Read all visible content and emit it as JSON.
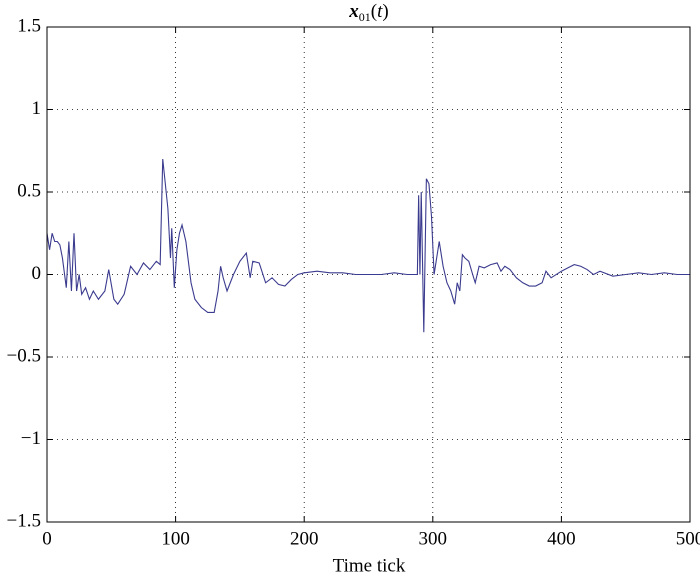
{
  "chart_data": {
    "type": "line",
    "title": {
      "base": "x",
      "subscript": "01",
      "open": "(",
      "arg": "t",
      "close": ")"
    },
    "xlabel": "Time tick",
    "xlim": [
      0,
      500
    ],
    "xticks": [
      0,
      100,
      200,
      300,
      400,
      500
    ],
    "ylim": [
      -1.5,
      1.5
    ],
    "yticks": [
      {
        "value": -1.5,
        "label": "−1.5"
      },
      {
        "value": -1,
        "label": "−1"
      },
      {
        "value": -0.5,
        "label": "−0.5"
      },
      0,
      0.5,
      1,
      1.5
    ],
    "grid": true,
    "series": [
      {
        "color": "#3b3b8f",
        "x": [
          0,
          2,
          4,
          6,
          8,
          10,
          12,
          15,
          17,
          19,
          21,
          23,
          25,
          27,
          30,
          33,
          36,
          40,
          45,
          48,
          52,
          55,
          60,
          65,
          70,
          75,
          80,
          85,
          88,
          90,
          92,
          94,
          96,
          97,
          99,
          101,
          103,
          105,
          108,
          112,
          115,
          120,
          125,
          130,
          133,
          135,
          137,
          140,
          145,
          150,
          155,
          158,
          160,
          165,
          170,
          175,
          180,
          185,
          190,
          195,
          200,
          210,
          220,
          230,
          240,
          250,
          260,
          270,
          280,
          288,
          289,
          290,
          291,
          293,
          295,
          297,
          299,
          301,
          303,
          305,
          308,
          311,
          314,
          317,
          319,
          321,
          323,
          325,
          328,
          331,
          333,
          336,
          340,
          345,
          350,
          353,
          356,
          360,
          365,
          370,
          375,
          380,
          385,
          388,
          392,
          400,
          405,
          410,
          415,
          420,
          425,
          430,
          440,
          450,
          460,
          470,
          480,
          490,
          500
        ],
        "values": [
          0.25,
          0.15,
          0.25,
          0.2,
          0.2,
          0.18,
          0.1,
          -0.08,
          0.2,
          -0.1,
          0.25,
          -0.1,
          0.0,
          -0.12,
          -0.08,
          -0.15,
          -0.1,
          -0.15,
          -0.1,
          0.03,
          -0.15,
          -0.18,
          -0.12,
          0.05,
          0.0,
          0.07,
          0.03,
          0.08,
          0.06,
          0.7,
          0.55,
          0.4,
          0.1,
          0.28,
          -0.08,
          0.15,
          0.25,
          0.3,
          0.2,
          -0.05,
          -0.15,
          -0.2,
          -0.23,
          -0.23,
          -0.1,
          0.05,
          -0.02,
          -0.1,
          0.0,
          0.08,
          0.13,
          -0.02,
          0.08,
          0.07,
          -0.05,
          -0.02,
          -0.06,
          -0.07,
          -0.03,
          0.0,
          0.01,
          0.02,
          0.01,
          0.01,
          0.0,
          0.0,
          0.0,
          0.01,
          0.0,
          0.0,
          0.48,
          0.0,
          0.5,
          -0.35,
          0.58,
          0.55,
          0.35,
          0.0,
          0.1,
          0.2,
          0.05,
          -0.05,
          -0.1,
          -0.18,
          -0.05,
          -0.1,
          0.12,
          0.1,
          0.08,
          0.0,
          -0.05,
          0.05,
          0.04,
          0.06,
          0.07,
          0.02,
          0.05,
          0.03,
          -0.02,
          -0.05,
          -0.07,
          -0.07,
          -0.05,
          0.02,
          -0.02,
          0.02,
          0.04,
          0.06,
          0.05,
          0.03,
          0.0,
          0.02,
          -0.01,
          0.0,
          0.01,
          0.0,
          0.01,
          0.0,
          0.0
        ]
      }
    ]
  }
}
